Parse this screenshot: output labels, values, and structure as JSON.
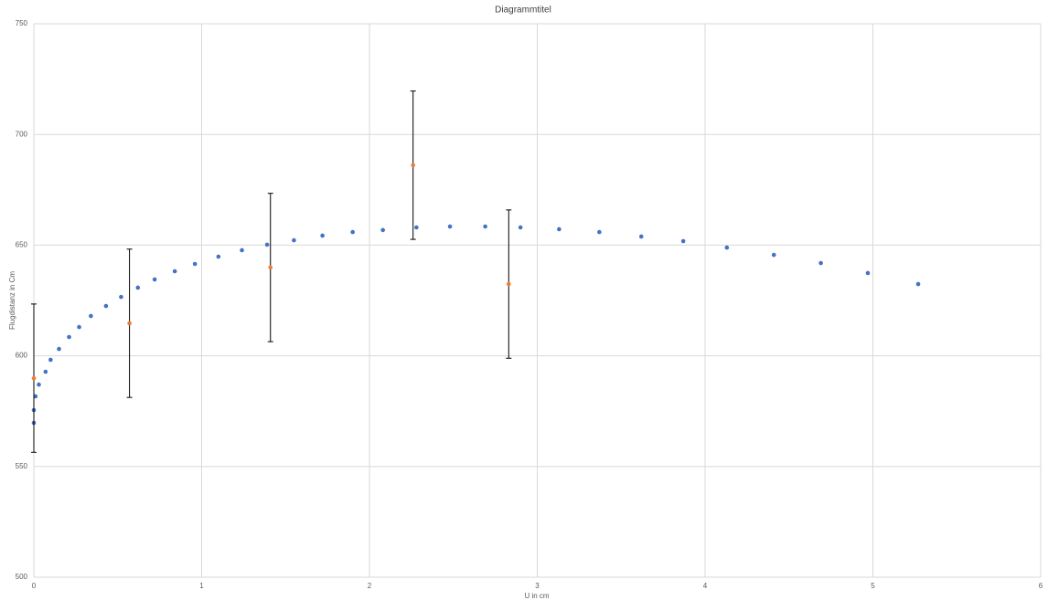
{
  "chart_data": {
    "type": "scatter",
    "title": "Diagrammtitel",
    "x_label": "U in cm",
    "y_label": "Flugdistanz in Cm",
    "xlim": [
      0,
      6
    ],
    "xticks": [
      0,
      1,
      2,
      3,
      4,
      5,
      6
    ],
    "ylim": [
      500,
      750
    ],
    "yticks": [
      500,
      550,
      600,
      650,
      700,
      750
    ],
    "grid": true,
    "series": [
      {
        "color": "#4472c4",
        "x": [
          0,
          0,
          0.01,
          0.03,
          0.07,
          0.1,
          0.15,
          0.21,
          0.27,
          0.34,
          0.43,
          0.52,
          0.62,
          0.72,
          0.84,
          0.96,
          1.1,
          1.24,
          1.39,
          1.55,
          1.72,
          1.9,
          2.08,
          2.28,
          2.48,
          2.69,
          2.9,
          3.13,
          3.37,
          3.62,
          3.87,
          4.13,
          4.41,
          4.69,
          4.97,
          5.27
        ],
        "values": [
          569.7,
          575.5,
          581.7,
          587,
          592.8,
          598.2,
          603.1,
          608.5,
          613,
          618,
          622.5,
          626.6,
          630.8,
          634.5,
          638.2,
          641.5,
          644.8,
          647.7,
          650.2,
          652.2,
          654.3,
          655.9,
          656.8,
          658,
          658.4,
          658.4,
          658,
          657.2,
          655.9,
          653.9,
          651.8,
          648.9,
          645.6,
          641.9,
          637.4,
          632.4
        ]
      },
      {
        "color": "#ed7d31",
        "x": [
          0,
          0.57,
          1.41,
          2.26,
          2.83
        ],
        "values": [
          589.9,
          614.7,
          639.9,
          686.1,
          632.4
        ],
        "errors": [
          33.5,
          33.5,
          33.5,
          33.5,
          33.5
        ]
      }
    ]
  }
}
